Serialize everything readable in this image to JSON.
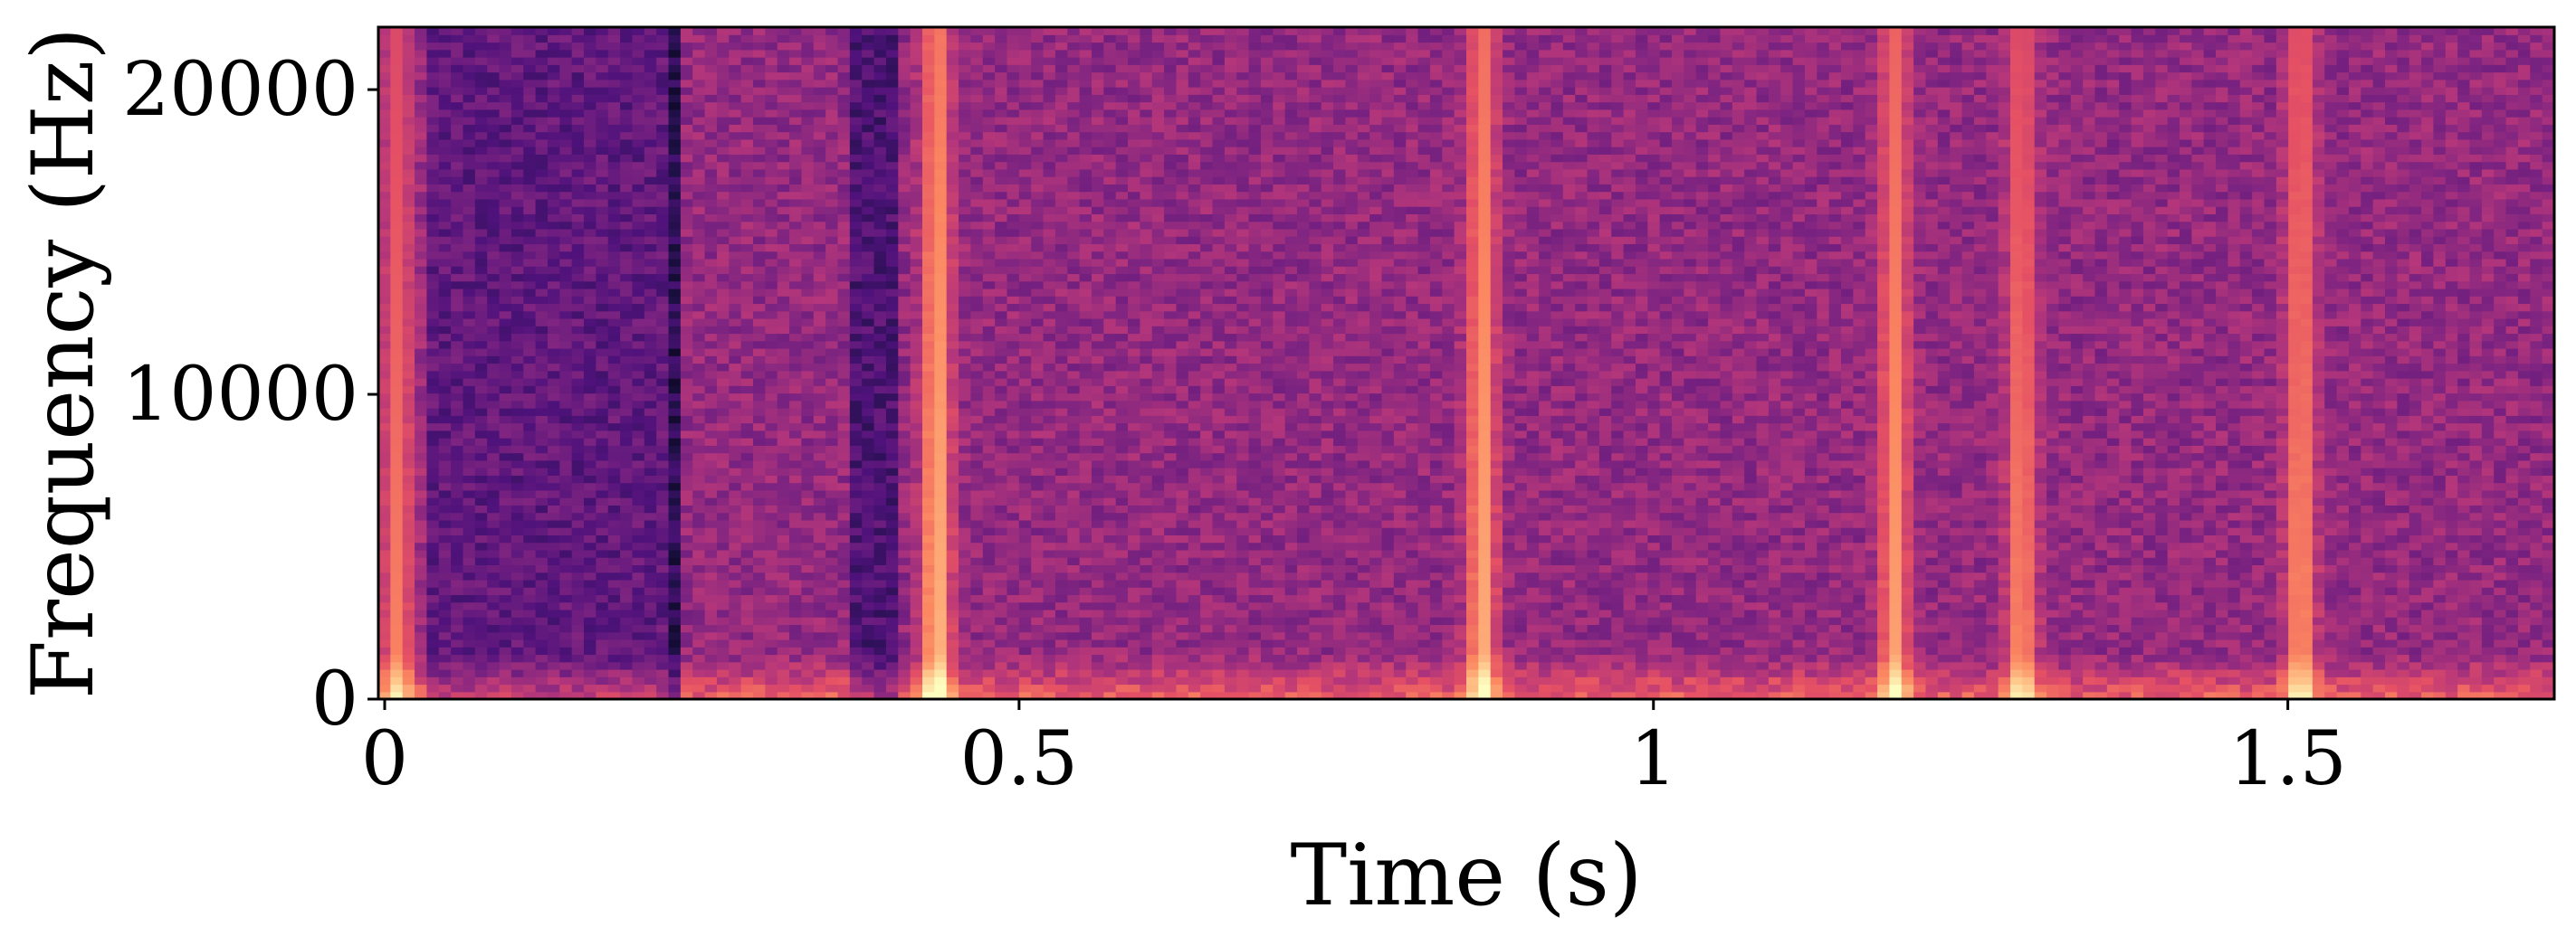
{
  "chart_data": {
    "type": "heatmap",
    "subtype": "spectrogram",
    "colormap": "magma",
    "title": "",
    "xlabel": "Time (s)",
    "ylabel": "Frequency (Hz)",
    "xlim": [
      -0.005,
      1.71
    ],
    "ylim": [
      0,
      22050
    ],
    "xticks": [
      {
        "value": 0,
        "label": "0"
      },
      {
        "value": 0.5,
        "label": "0.5"
      },
      {
        "value": 1,
        "label": "1"
      },
      {
        "value": 1.5,
        "label": "1.5"
      }
    ],
    "yticks": [
      {
        "value": 0,
        "label": "0"
      },
      {
        "value": 10000,
        "label": "10000"
      },
      {
        "value": 20000,
        "label": "20000"
      }
    ],
    "grid": false,
    "legend": "none",
    "background_intensity": 0.42,
    "onsets": [
      {
        "time": 0.01,
        "strength": 0.75
      },
      {
        "time": 0.435,
        "strength": 0.88
      },
      {
        "time": 0.865,
        "strength": 0.85
      },
      {
        "time": 1.19,
        "strength": 0.82
      },
      {
        "time": 1.29,
        "strength": 0.78
      },
      {
        "time": 1.51,
        "strength": 0.8
      }
    ],
    "quiet_regions": [
      {
        "start": 0.03,
        "end": 0.23,
        "level": 0.3
      },
      {
        "start": 0.22,
        "end": 0.235,
        "level": 0.16
      },
      {
        "start": 0.37,
        "end": 0.4,
        "level": 0.25
      }
    ],
    "low_freq_band": {
      "max_hz": 1500,
      "boost": 0.25
    }
  }
}
